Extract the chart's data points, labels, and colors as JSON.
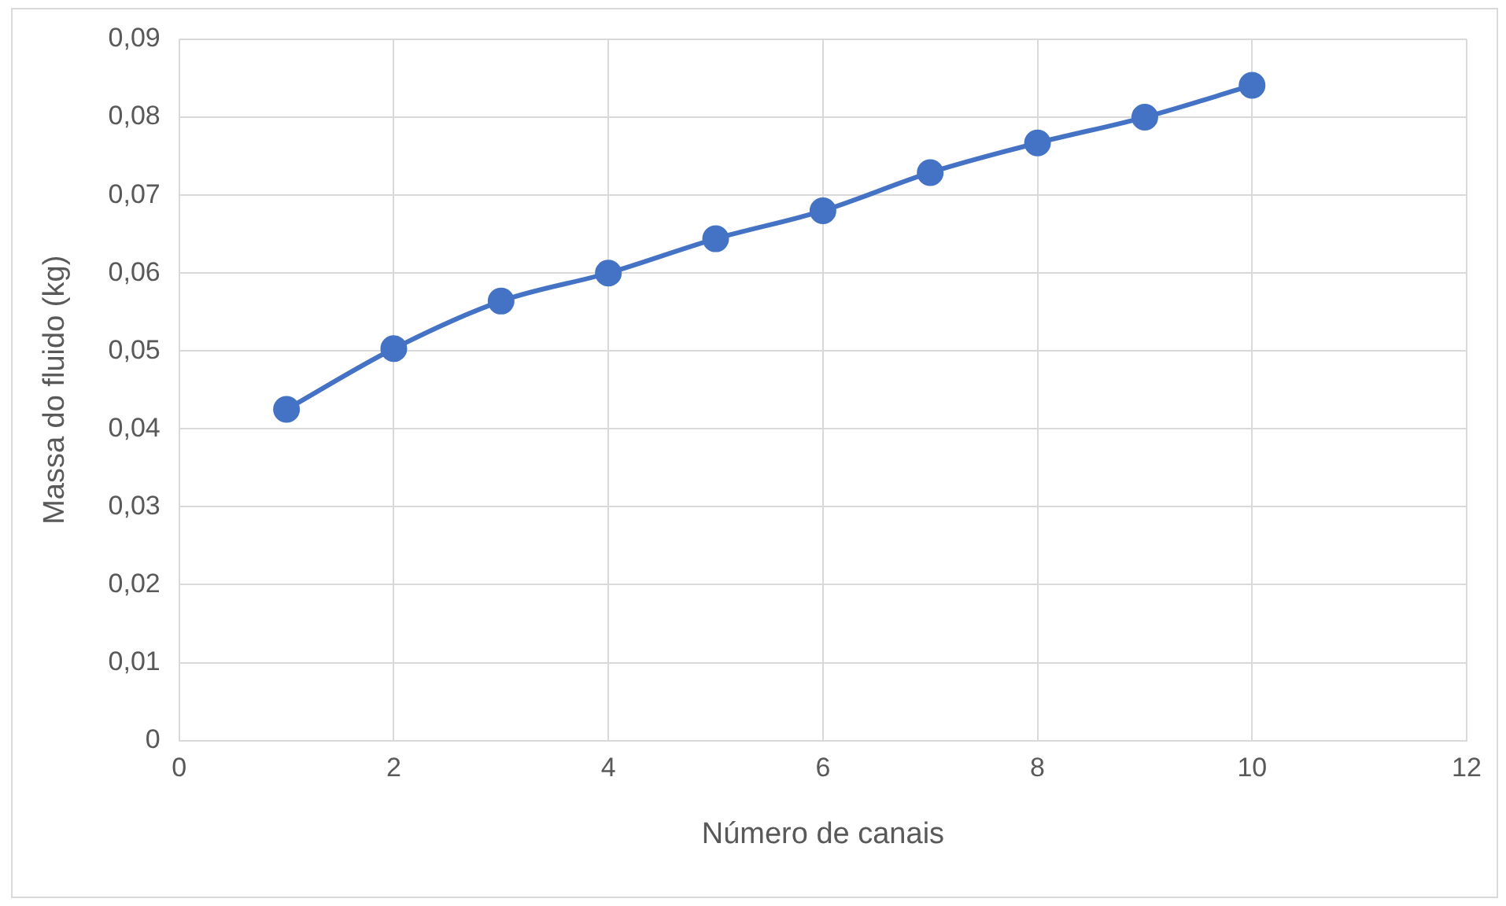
{
  "chart_data": {
    "type": "line",
    "xlabel": "Número de canais",
    "ylabel": "Massa do fluido (kg)",
    "x": [
      1,
      2,
      3,
      4,
      5,
      6,
      7,
      8,
      9,
      10
    ],
    "series": [
      {
        "color": "#4472c4",
        "values": [
          0.0425,
          0.0503,
          0.0564,
          0.06,
          0.0644,
          0.068,
          0.0729,
          0.0767,
          0.08,
          0.0841
        ]
      }
    ],
    "xlim": [
      0,
      12
    ],
    "xticks": [
      0,
      2,
      4,
      6,
      8,
      10,
      12
    ],
    "ylim": [
      0,
      0.09
    ],
    "yticks": [
      0,
      {
        "value": 0.01,
        "label": "0,01"
      },
      {
        "value": 0.02,
        "label": "0,02"
      },
      {
        "value": 0.03,
        "label": "0,03"
      },
      {
        "value": 0.04,
        "label": "0,04"
      },
      {
        "value": 0.05,
        "label": "0,05"
      },
      {
        "value": 0.06,
        "label": "0,06"
      },
      {
        "value": 0.07,
        "label": "0,07"
      },
      {
        "value": 0.08,
        "label": "0,08"
      },
      {
        "value": 0.09,
        "label": "0,09"
      }
    ],
    "grid": true,
    "legend": false,
    "marker": "circle",
    "line_style": "solid"
  }
}
